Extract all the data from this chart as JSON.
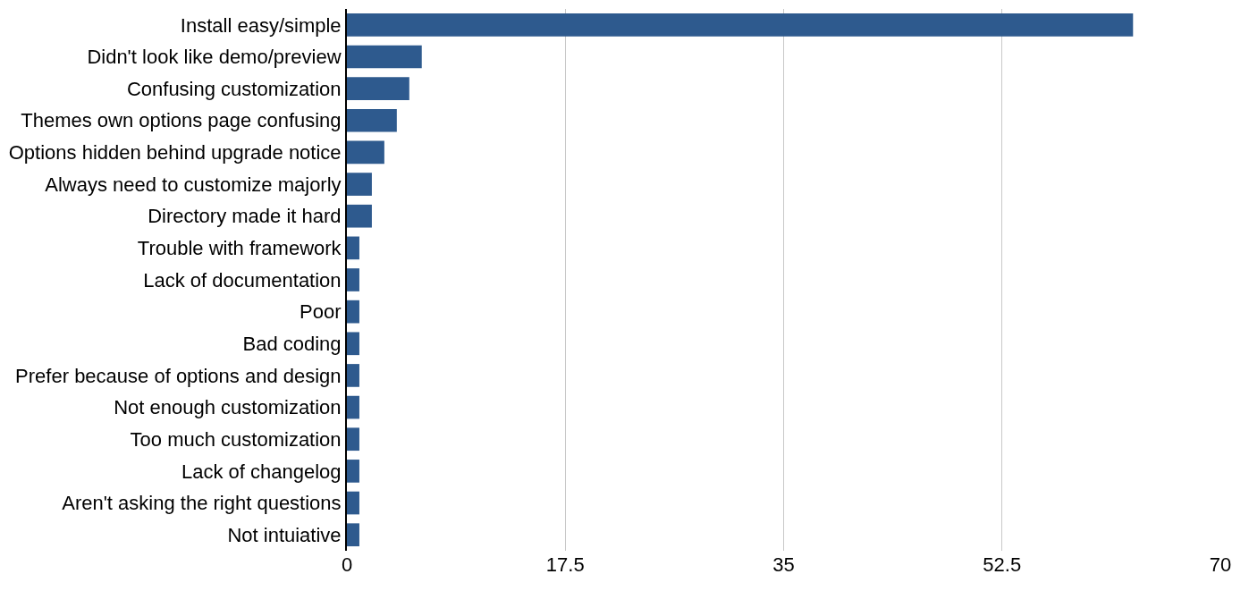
{
  "chart_data": {
    "type": "bar",
    "orientation": "horizontal",
    "categories": [
      "Install easy/simple",
      "Didn't look like demo/preview",
      "Confusing customization",
      "Themes own options page confusing",
      "Options hidden behind upgrade notice",
      "Always need to customize majorly",
      "Directory made it hard",
      "Trouble with framework",
      "Lack of documentation",
      "Poor",
      "Bad coding",
      "Prefer because of options and design",
      "Not enough customization",
      "Too much customization",
      "Lack of changelog",
      "Aren't asking the right questions",
      "Not intuiative"
    ],
    "values": [
      63,
      6,
      5,
      4,
      3,
      2,
      2,
      1,
      1,
      1,
      1,
      1,
      1,
      1,
      1,
      1,
      1
    ],
    "color": "#2e5a8e",
    "xlim": [
      0,
      70
    ],
    "xticks": [
      0,
      17.5,
      35,
      52.5,
      70
    ],
    "grid": "x",
    "legend": false
  }
}
